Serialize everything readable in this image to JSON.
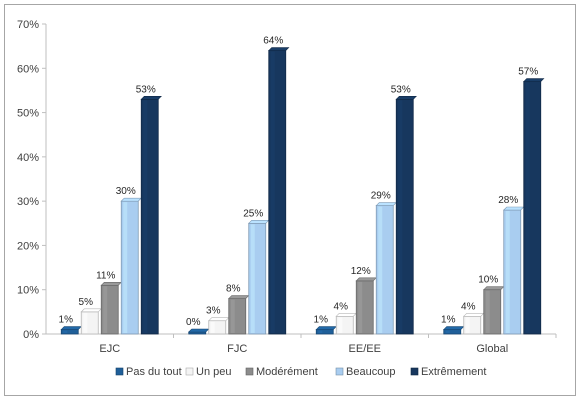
{
  "chart_data": {
    "type": "bar",
    "categories": [
      "EJC",
      "FJC",
      "EE/EE",
      "Global"
    ],
    "series": [
      {
        "name": "Pas du tout",
        "values": [
          1,
          0,
          1,
          1
        ],
        "labels": [
          "1%",
          "0%",
          "1%",
          "1%"
        ],
        "color": "#1f5f99"
      },
      {
        "name": "Un peu",
        "values": [
          5,
          3,
          4,
          4
        ],
        "labels": [
          "5%",
          "3%",
          "4%",
          "4%"
        ],
        "color": "#f4f4f4"
      },
      {
        "name": "Modérément",
        "values": [
          11,
          8,
          12,
          10
        ],
        "labels": [
          "11%",
          "8%",
          "12%",
          "10%"
        ],
        "color": "#8c8c8c"
      },
      {
        "name": "Beaucoup",
        "values": [
          30,
          25,
          29,
          28
        ],
        "labels": [
          "30%",
          "25%",
          "29%",
          "28%"
        ],
        "color": "#a9cdf0"
      },
      {
        "name": "Extrêmement",
        "values": [
          53,
          64,
          53,
          57
        ],
        "labels": [
          "53%",
          "64%",
          "53%",
          "57%"
        ],
        "color": "#17375e"
      }
    ],
    "ylim": [
      0,
      70
    ],
    "yticks": [
      0,
      10,
      20,
      30,
      40,
      50,
      60,
      70
    ],
    "ytick_labels": [
      "0%",
      "10%",
      "20%",
      "30%",
      "40%",
      "50%",
      "60%",
      "70%"
    ],
    "grid": false,
    "legend_position": "bottom"
  }
}
